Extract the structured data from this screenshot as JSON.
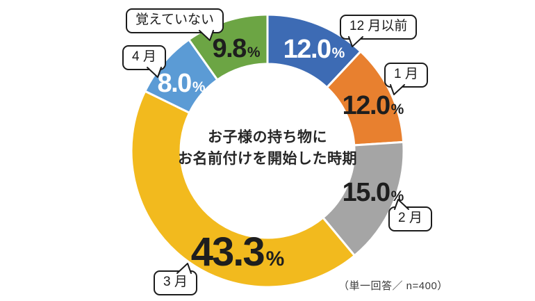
{
  "chart_data": {
    "type": "donut",
    "title_lines": [
      "お子様の持ち物に",
      "お名前付けを開始した時期"
    ],
    "unit": "%",
    "note": "（単一回答／ n=400）",
    "start_angle_deg": 0,
    "direction": "clockwise",
    "legend_position": "callouts",
    "slices": [
      {
        "label": "12 月以前",
        "value": 12.0,
        "display": "12.0",
        "color": "#3d6bb4",
        "value_text_color": "#ffffff"
      },
      {
        "label": "1 月",
        "value": 12.0,
        "display": "12.0",
        "color": "#e8802f",
        "value_text_color": "#1e1e1e"
      },
      {
        "label": "2 月",
        "value": 15.0,
        "display": "15.0",
        "color": "#a5a5a5",
        "value_text_color": "#1e1e1e"
      },
      {
        "label": "3 月",
        "value": 43.3,
        "display": "43.3",
        "color": "#f2ba1e",
        "value_text_color": "#1e1e1e"
      },
      {
        "label": "4 月",
        "value": 8.0,
        "display": "8.0",
        "color": "#5b9bd5",
        "value_text_color": "#ffffff"
      },
      {
        "label": "覚えていない",
        "value": 9.8,
        "display": "9.8",
        "color": "#6ca544",
        "value_text_color": "#1e1e1e"
      }
    ]
  }
}
